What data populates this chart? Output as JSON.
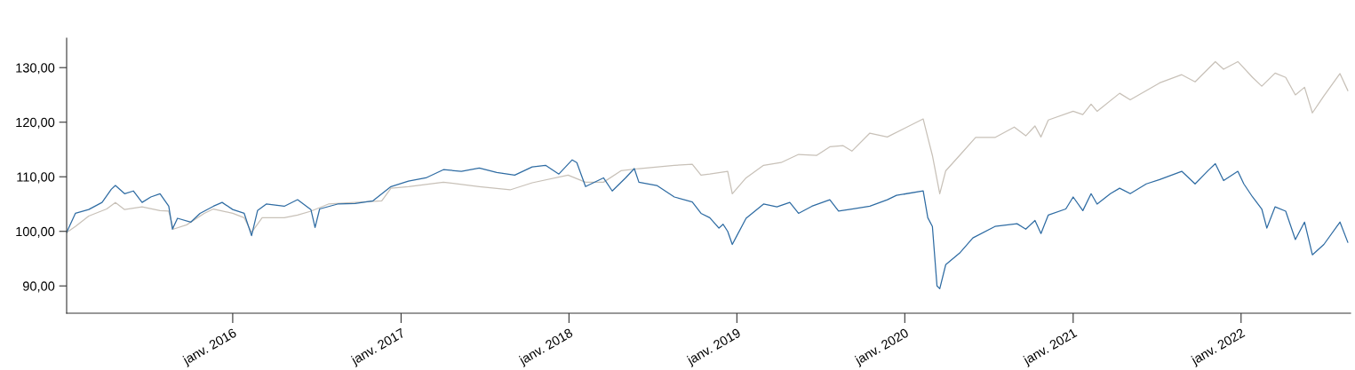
{
  "chart_data": {
    "type": "line",
    "grid": false,
    "marker": "none",
    "line_style": "solid",
    "xlim": [
      "2015-01-05",
      "2022-08-27"
    ],
    "xticks": [
      {
        "value": "2016-01-01",
        "label": "janv. 2016"
      },
      {
        "value": "2017-01-01",
        "label": "janv. 2017"
      },
      {
        "value": "2018-01-01",
        "label": "janv. 2018"
      },
      {
        "value": "2019-01-01",
        "label": "janv. 2019"
      },
      {
        "value": "2020-01-01",
        "label": "janv. 2020"
      },
      {
        "value": "2021-01-01",
        "label": "janv. 2021"
      },
      {
        "value": "2022-01-01",
        "label": "janv. 2022"
      }
    ],
    "ylim": [
      85,
      135.4
    ],
    "yticks": [
      {
        "value": 90,
        "label": "90,00"
      },
      {
        "value": 100,
        "label": "100,00"
      },
      {
        "value": 110,
        "label": "110,00"
      },
      {
        "value": 120,
        "label": "120,00"
      },
      {
        "value": 130,
        "label": "130,00"
      }
    ],
    "series": [
      {
        "color": "#c8c1b8",
        "x": [
          "2015-01-05",
          "2015-01-24",
          "2015-02-22",
          "2015-04-02",
          "2015-04-21",
          "2015-05-11",
          "2015-06-18",
          "2015-07-27",
          "2015-08-15",
          "2015-08-25",
          "2015-09-23",
          "2015-10-31",
          "2015-11-20",
          "2016-01-01",
          "2016-01-26",
          "2016-02-11",
          "2016-03-05",
          "2016-04-22",
          "2016-05-21",
          "2016-06-19",
          "2016-07-27",
          "2016-09-23",
          "2016-11-20",
          "2016-12-10",
          "2017-01-17",
          "2017-04-03",
          "2017-06-20",
          "2017-08-26",
          "2017-10-13",
          "2017-12-30",
          "2018-02-06",
          "2018-03-17",
          "2018-04-24",
          "2018-06-02",
          "2018-08-18",
          "2018-09-26",
          "2018-10-15",
          "2018-11-03",
          "2018-12-12",
          "2018-12-22",
          "2019-01-21",
          "2019-02-28",
          "2019-04-07",
          "2019-05-15",
          "2019-06-23",
          "2019-07-22",
          "2019-08-20",
          "2019-09-08",
          "2019-10-17",
          "2019-11-24",
          "2020-02-10",
          "2020-02-20",
          "2020-03-01",
          "2020-03-17",
          "2020-03-30",
          "2020-04-29",
          "2020-06-03",
          "2020-07-15",
          "2020-08-26",
          "2020-09-20",
          "2020-10-10",
          "2020-10-23",
          "2020-11-08",
          "2021-01-01",
          "2021-01-22",
          "2021-02-09",
          "2021-02-22",
          "2021-04-12",
          "2021-05-05",
          "2021-07-08",
          "2021-08-25",
          "2021-09-23",
          "2021-11-06",
          "2021-11-24",
          "2021-12-25",
          "2022-01-26",
          "2022-02-15",
          "2022-03-16",
          "2022-04-08",
          "2022-04-29",
          "2022-05-19",
          "2022-06-05",
          "2022-06-30",
          "2022-08-04",
          "2022-08-21"
        ],
        "values": [
          99.8,
          100.9,
          102.8,
          104.1,
          105.3,
          104.0,
          104.5,
          103.8,
          103.7,
          100.4,
          101.2,
          103.3,
          104.1,
          103.3,
          102.5,
          99.8,
          102.5,
          102.5,
          103.0,
          103.7,
          105.0,
          105.3,
          105.6,
          107.9,
          108.2,
          109.0,
          108.2,
          107.6,
          108.9,
          110.3,
          109.0,
          109.0,
          111.1,
          111.5,
          112.1,
          112.3,
          110.3,
          110.5,
          111.0,
          106.9,
          109.8,
          112.1,
          112.6,
          114.1,
          113.9,
          115.5,
          115.7,
          114.7,
          118.0,
          117.3,
          120.6,
          117.2,
          113.9,
          106.9,
          111.1,
          113.9,
          117.2,
          117.2,
          119.1,
          117.5,
          119.3,
          117.3,
          120.4,
          122.0,
          121.4,
          123.3,
          122.0,
          125.3,
          124.1,
          127.2,
          128.7,
          127.4,
          131.1,
          129.7,
          131.1,
          128.2,
          126.6,
          129.0,
          128.2,
          125.0,
          126.4,
          121.7,
          124.8,
          128.9,
          125.8
        ]
      },
      {
        "color": "#2f6ca3",
        "x": [
          "2015-01-05",
          "2015-01-24",
          "2015-02-22",
          "2015-03-23",
          "2015-04-12",
          "2015-04-21",
          "2015-05-11",
          "2015-05-30",
          "2015-06-18",
          "2015-07-07",
          "2015-07-27",
          "2015-08-15",
          "2015-08-23",
          "2015-09-03",
          "2015-10-02",
          "2015-10-22",
          "2015-11-20",
          "2015-12-09",
          "2016-01-01",
          "2016-01-26",
          "2016-02-11",
          "2016-02-24",
          "2016-03-14",
          "2016-04-22",
          "2016-05-21",
          "2016-06-19",
          "2016-06-28",
          "2016-07-08",
          "2016-08-16",
          "2016-09-23",
          "2016-11-01",
          "2016-12-10",
          "2017-01-17",
          "2017-02-24",
          "2017-04-03",
          "2017-05-12",
          "2017-06-20",
          "2017-07-28",
          "2017-09-05",
          "2017-10-13",
          "2017-11-11",
          "2017-12-10",
          "2018-01-08",
          "2018-01-18",
          "2018-02-06",
          "2018-03-17",
          "2018-04-05",
          "2018-05-04",
          "2018-05-23",
          "2018-06-02",
          "2018-07-11",
          "2018-08-18",
          "2018-09-26",
          "2018-10-15",
          "2018-11-03",
          "2018-11-23",
          "2018-12-02",
          "2018-12-12",
          "2018-12-22",
          "2019-01-01",
          "2019-01-21",
          "2019-02-09",
          "2019-02-28",
          "2019-03-29",
          "2019-04-26",
          "2019-05-15",
          "2019-06-13",
          "2019-07-22",
          "2019-08-10",
          "2019-09-08",
          "2019-10-17",
          "2019-11-24",
          "2019-12-14",
          "2020-02-10",
          "2020-02-20",
          "2020-03-01",
          "2020-03-11",
          "2020-03-17",
          "2020-03-30",
          "2020-04-29",
          "2020-05-28",
          "2020-07-15",
          "2020-09-01",
          "2020-09-20",
          "2020-10-10",
          "2020-10-23",
          "2020-11-08",
          "2020-12-16",
          "2021-01-01",
          "2021-01-22",
          "2021-02-09",
          "2021-02-22",
          "2021-03-23",
          "2021-04-12",
          "2021-05-05",
          "2021-06-09",
          "2021-07-08",
          "2021-08-25",
          "2021-09-23",
          "2021-10-22",
          "2021-11-06",
          "2021-11-24",
          "2021-12-25",
          "2022-01-07",
          "2022-01-26",
          "2022-02-15",
          "2022-02-26",
          "2022-03-16",
          "2022-04-08",
          "2022-04-29",
          "2022-05-19",
          "2022-06-05",
          "2022-06-30",
          "2022-08-04",
          "2022-08-21"
        ],
        "values": [
          99.8,
          103.3,
          104.0,
          105.3,
          107.7,
          108.4,
          106.9,
          107.4,
          105.3,
          106.3,
          106.9,
          104.6,
          100.4,
          102.4,
          101.7,
          103.3,
          104.6,
          105.3,
          104.0,
          103.3,
          99.2,
          103.8,
          105.0,
          104.6,
          105.8,
          104.0,
          100.7,
          104.1,
          105.0,
          105.1,
          105.6,
          108.2,
          109.2,
          109.8,
          111.3,
          111.0,
          111.6,
          110.8,
          110.3,
          111.8,
          112.1,
          110.5,
          113.1,
          112.6,
          108.2,
          109.8,
          107.4,
          109.8,
          111.5,
          109.0,
          108.4,
          106.3,
          105.4,
          103.3,
          102.5,
          100.6,
          101.3,
          100.0,
          97.6,
          99.2,
          102.4,
          103.7,
          105.0,
          104.5,
          105.3,
          103.3,
          104.6,
          105.8,
          103.7,
          104.1,
          104.6,
          105.8,
          106.6,
          107.4,
          102.5,
          100.9,
          90.0,
          89.5,
          93.9,
          96.0,
          98.8,
          100.9,
          101.4,
          100.4,
          102.0,
          99.6,
          103.0,
          104.1,
          106.3,
          103.8,
          106.9,
          105.0,
          106.9,
          107.9,
          106.9,
          108.7,
          109.5,
          111.0,
          108.7,
          111.2,
          112.4,
          109.3,
          111.0,
          108.7,
          106.3,
          104.1,
          100.6,
          104.5,
          103.7,
          98.5,
          101.7,
          95.7,
          97.6,
          101.7,
          98.0
        ]
      }
    ]
  }
}
